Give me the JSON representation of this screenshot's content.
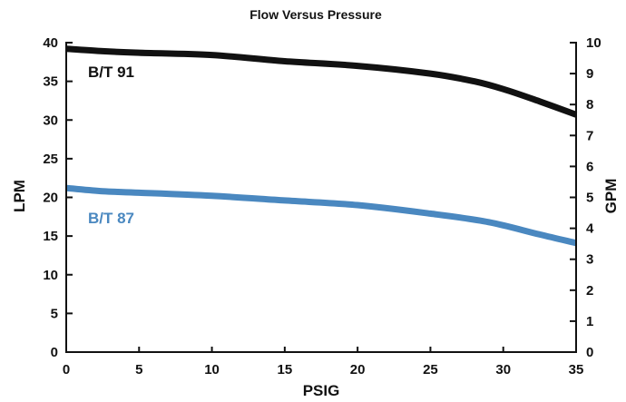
{
  "chart_data": {
    "type": "line",
    "title": "Flow Versus Pressure",
    "xlabel": "PSIG",
    "ylabel": "LPM",
    "y2label": "GPM",
    "xlim": [
      0,
      35
    ],
    "ylim": [
      0,
      40
    ],
    "y2lim": [
      0,
      10
    ],
    "xticks": [
      "0",
      "5",
      "10",
      "15",
      "20",
      "25",
      "30",
      "35"
    ],
    "yticks": [
      "0",
      "5",
      "10",
      "15",
      "20",
      "25",
      "30",
      "35",
      "40"
    ],
    "y2ticks": [
      "0",
      "1",
      "2",
      "3",
      "4",
      "5",
      "6",
      "7",
      "8",
      "9",
      "10"
    ],
    "grid": false,
    "series": [
      {
        "name": "B/T 91",
        "color": "#111111",
        "x": [
          0,
          2.5,
          5,
          10,
          15,
          20,
          25,
          28,
          30,
          32.5,
          35
        ],
        "y": [
          39.2,
          38.9,
          38.7,
          38.4,
          37.6,
          37.0,
          36.0,
          35.0,
          34.0,
          32.4,
          30.7
        ]
      },
      {
        "name": "B/T 87",
        "color": "#4a88c0",
        "x": [
          0,
          2.5,
          5,
          10,
          15,
          20,
          25,
          29,
          32.5,
          35
        ],
        "y": [
          21.2,
          20.8,
          20.6,
          20.2,
          19.6,
          19.0,
          17.9,
          16.8,
          15.2,
          14.1
        ]
      }
    ]
  }
}
